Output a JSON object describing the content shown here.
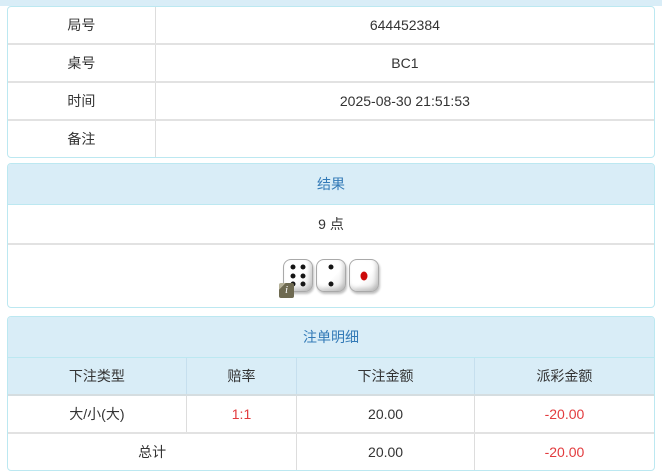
{
  "colors": {
    "top_bar": "#d9edf7",
    "panel_border": "#bce8f1",
    "panel_header_bg": "#d9edf7",
    "panel_header_text": "#337ab7",
    "body_text": "#333333",
    "negative_value": "#e23b3e",
    "row_separator": "#e2e2e2"
  },
  "info_table": {
    "rows": [
      {
        "label": "局号",
        "value": "644452384"
      },
      {
        "label": "桌号",
        "value": "BC1"
      },
      {
        "label": "时间",
        "value": "2025-08-30 21:51:53"
      },
      {
        "label": "备注",
        "value": ""
      }
    ]
  },
  "result_panel": {
    "title": "结果",
    "points": "9 点",
    "dice": [
      6,
      2,
      1
    ],
    "info_badge": "i"
  },
  "bets_panel": {
    "title": "注单明细",
    "columns": [
      "下注类型",
      "赔率",
      "下注金额",
      "派彩金额"
    ],
    "rows": [
      {
        "type": "大/小(大)",
        "odds": "1:1",
        "amount": "20.00",
        "payout": "-20.00"
      }
    ],
    "total": {
      "label": "总计",
      "amount": "20.00",
      "payout": "-20.00"
    }
  }
}
